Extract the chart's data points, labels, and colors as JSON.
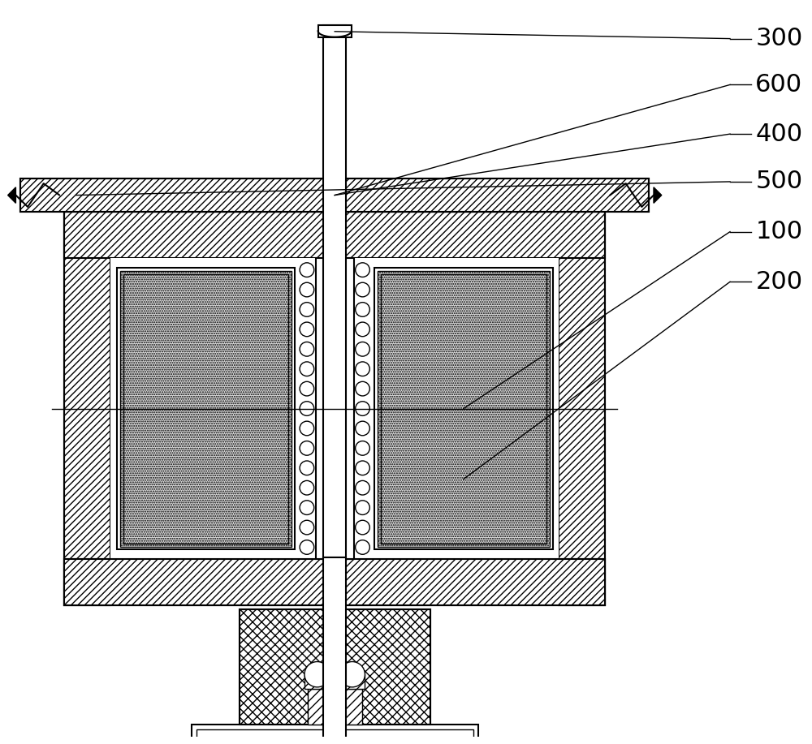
{
  "bg_color": "#ffffff",
  "line_color": "#000000",
  "labels": [
    "300",
    "600",
    "400",
    "500",
    "100",
    "200"
  ],
  "label_font_size": 22,
  "figsize": [
    10.0,
    9.17
  ],
  "dpi": 100
}
